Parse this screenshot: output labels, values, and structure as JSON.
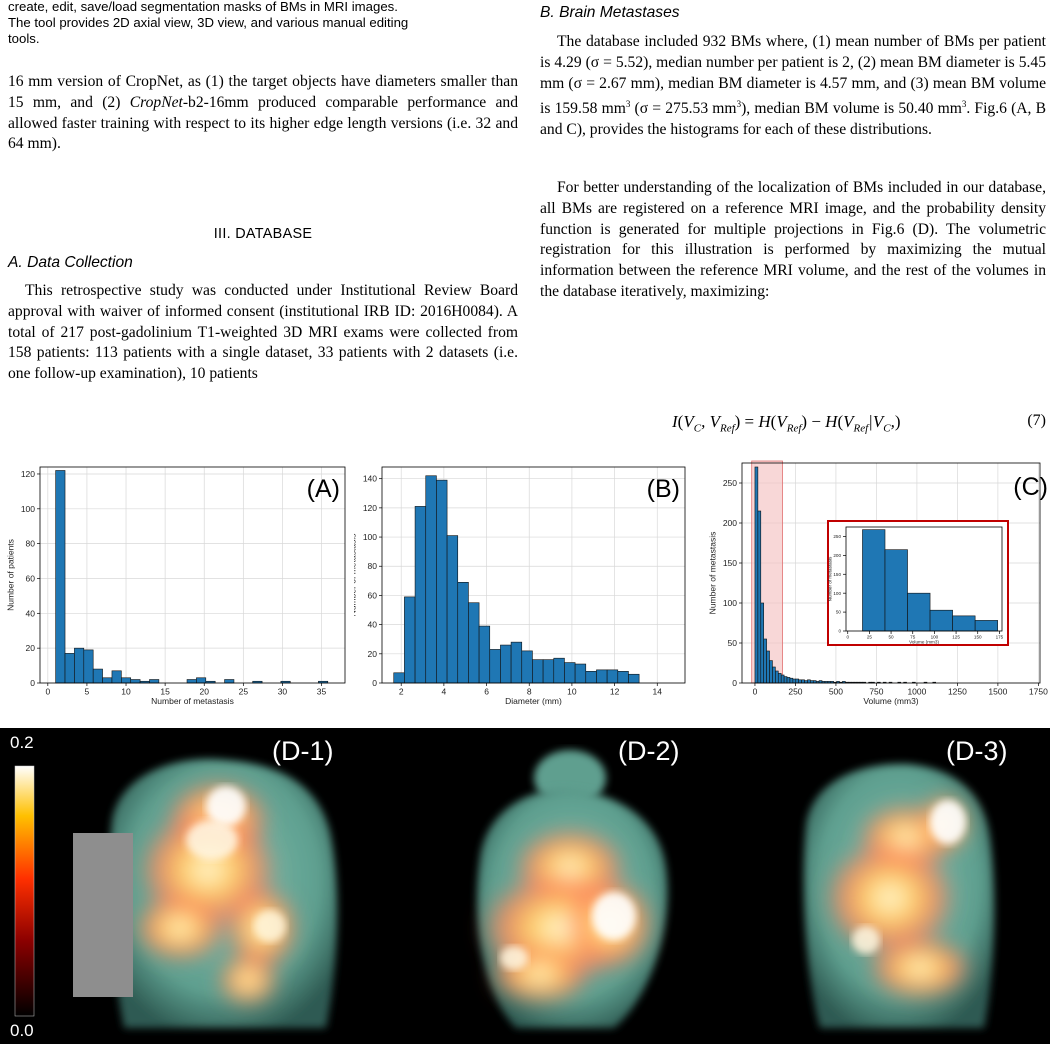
{
  "left": {
    "caption_lines": [
      "create, edit, save/load segmentation masks of BMs in MRI images.",
      "The tool provides 2D axial view, 3D view, and various manual editing",
      "tools."
    ],
    "para1_a": "16 mm version of CropNet, as (1) the target objects have diameters smaller than 15 mm, and (2) ",
    "para1_em": "CropNet",
    "para1_b": "-b2-16mm produced comparable performance and allowed faster training with respect to its higher edge length versions (i.e. 32 and 64 mm).",
    "section_title": "III.  DATABASE",
    "subsection_title": "A.  Data Collection",
    "para2": "This retrospective study was conducted under Institutional Review Board approval with waiver of informed consent (institutional IRB ID: 2016H0084). A total of 217 post-gadolinium T1-weighted 3D MRI exams were collected from 158 patients: 113 patients with a single dataset, 33 patients with 2 datasets (i.e. one follow-up examination), 10 patients"
  },
  "right": {
    "subsection_title": "B.  Brain Metastases",
    "para1_a": "The database included 932 BMs where, (1) mean number of BMs per patient is 4.29 (σ = 5.52), median number per patient is 2, (2) mean BM diameter is 5.45 mm (σ = 2.67 mm), median BM diameter is 4.57 mm, and (3) mean BM volume is 159.58 mm",
    "para1_b": " (σ = 275.53 mm",
    "para1_c": "), median BM volume is 50.40 mm",
    "para1_d": ". Fig.6 (A, B and C), provides the histograms for each of these distributions.",
    "sup3": "3",
    "para2": "For better understanding of the localization of BMs included in our database, all BMs are registered on a reference MRI image, and the probability density function is generated for multiple projections in Fig.6 (D). The volumetric registration for this illustration is performed by maximizing the mutual information between the reference MRI volume, and the rest of the volumes in the database iteratively, maximizing:",
    "equation": "I(V_C, V_Ref) = H(V_Ref) − H(V_Ref | V_C,)",
    "equation_number": "(7)"
  },
  "chart_data": [
    {
      "type": "bar",
      "panel_label": "(A)",
      "xlabel": "Number of metastasis",
      "ylabel": "Number of patients",
      "xlim": [
        -1,
        38
      ],
      "ylim": [
        0,
        124
      ],
      "xticks": [
        0,
        5,
        10,
        15,
        20,
        25,
        30,
        35
      ],
      "yticks": [
        0,
        20,
        40,
        60,
        80,
        100,
        120
      ],
      "bin_start": 1,
      "bin_width": 1.2,
      "values": [
        122,
        17,
        20,
        19,
        8,
        3,
        7,
        3,
        2,
        1,
        2,
        0,
        0,
        0,
        2,
        3,
        1,
        0,
        2,
        0,
        0,
        1,
        0,
        0,
        1,
        0,
        0,
        0,
        1
      ],
      "grid": true
    },
    {
      "type": "bar",
      "panel_label": "(B)",
      "xlabel": "Diameter (mm)",
      "ylabel": "Number of metastasis",
      "xlim": [
        1.1,
        15.3
      ],
      "ylim": [
        0,
        148
      ],
      "xticks": [
        2,
        4,
        6,
        8,
        10,
        12,
        14
      ],
      "yticks": [
        0,
        20,
        40,
        60,
        80,
        100,
        120,
        140
      ],
      "bin_start": 1.65,
      "bin_width": 0.5,
      "values": [
        7,
        59,
        121,
        142,
        139,
        101,
        69,
        55,
        39,
        23,
        26,
        28,
        22,
        16,
        16,
        17,
        14,
        13,
        8,
        9,
        9,
        8,
        6
      ],
      "grid": true
    },
    {
      "type": "bar",
      "panel_label": "(C)",
      "xlabel": "Volume (mm3)",
      "ylabel": "Number of metastasis",
      "xlim": [
        -80,
        1760
      ],
      "ylim": [
        0,
        275
      ],
      "xticks": [
        0,
        250,
        500,
        750,
        1000,
        1250,
        1500,
        1750
      ],
      "yticks": [
        0,
        50,
        100,
        150,
        200,
        250
      ],
      "bin_start": 0,
      "bin_width": 18,
      "values": [
        270,
        215,
        100,
        55,
        40,
        28,
        20,
        15,
        12,
        10,
        8,
        7,
        6,
        5,
        5,
        4,
        4,
        3,
        4,
        3,
        3,
        2,
        3,
        2,
        2,
        2,
        2,
        1,
        2,
        1,
        2,
        1,
        1,
        1,
        1,
        1,
        1,
        1,
        0,
        1,
        1,
        0,
        1,
        0,
        1,
        0,
        1,
        0,
        0,
        1,
        0,
        1,
        0,
        0,
        1,
        0,
        0,
        0,
        1,
        0,
        0,
        1
      ],
      "highlight_range": [
        0,
        170
      ],
      "grid": true,
      "inset": {
        "xlabel": "Volume (mm3)",
        "ylabel": "Number of metastasis",
        "xlim": [
          -2,
          178
        ],
        "ylim": [
          0,
          275
        ],
        "xticks": [
          0,
          25,
          50,
          75,
          100,
          125,
          150,
          175
        ],
        "yticks": [
          0,
          50,
          100,
          150,
          200,
          250
        ],
        "bin_start": 17,
        "bin_width": 26,
        "values": [
          268,
          215,
          100,
          55,
          40,
          28
        ]
      }
    }
  ],
  "brain_figure": {
    "colorbar_max": "0.2",
    "colorbar_min": "0.0",
    "panel_labels": [
      "(D-1)",
      "(D-2)",
      "(D-3)"
    ]
  }
}
